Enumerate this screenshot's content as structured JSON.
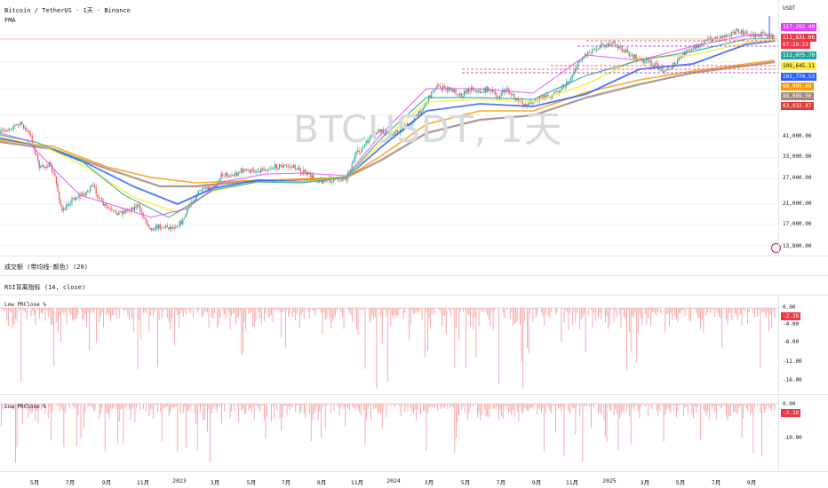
{
  "header": {
    "symbol_line": "Bitcoin / TetherUS · 1天 · Binance",
    "indicator": "FMA"
  },
  "watermark": "BTCUSDT, 1天",
  "price_scale": {
    "currency": "USDT",
    "ticks": [
      "41,000.00",
      "33,000.00",
      "27,000.00",
      "21,000.00",
      "17,000.00",
      "13,800.00"
    ],
    "tags": [
      {
        "text": "117,292.40",
        "color": "#e040fb"
      },
      {
        "text": "111,831.06",
        "color": "#f23645"
      },
      {
        "text": "07:28:23",
        "color": "#f23645"
      },
      {
        "text": "111,075.70",
        "color": "#26a69a"
      },
      {
        "text": "109,645.11",
        "color": "#ffeb3b"
      },
      {
        "text": "102,774.53",
        "color": "#2962ff"
      },
      {
        "text": "99,905.69",
        "color": "#ff9800"
      },
      {
        "text": "88,089.56",
        "color": "#a1887f"
      },
      {
        "text": "83,932.87",
        "color": "#e53935"
      }
    ]
  },
  "panes": {
    "volume_label": "成交额 (带均线-颜色) (20)",
    "rsi_label": "RSI背离指标 (14, close)",
    "pane1": {
      "title": "Low PRClose %",
      "ticks": [
        "0.00",
        "-4.00",
        "-8.00",
        "-12.00",
        "-16.00"
      ],
      "tag": "-2.38"
    },
    "pane2": {
      "title": "Low PRClose %",
      "ticks": [
        "0.00",
        "-10.00"
      ],
      "tag": "-2.38"
    }
  },
  "time_axis": [
    "5月",
    "7月",
    "9月",
    "11月",
    "2023",
    "3月",
    "5月",
    "7月",
    "9月",
    "11月",
    "2024",
    "3月",
    "5月",
    "7月",
    "9月",
    "11月",
    "2025",
    "3月",
    "5月",
    "7月",
    "9月"
  ],
  "colors": {
    "candle_up": "#26a69a",
    "candle_down": "#ef5350",
    "bars": "#f7a1a1"
  }
}
